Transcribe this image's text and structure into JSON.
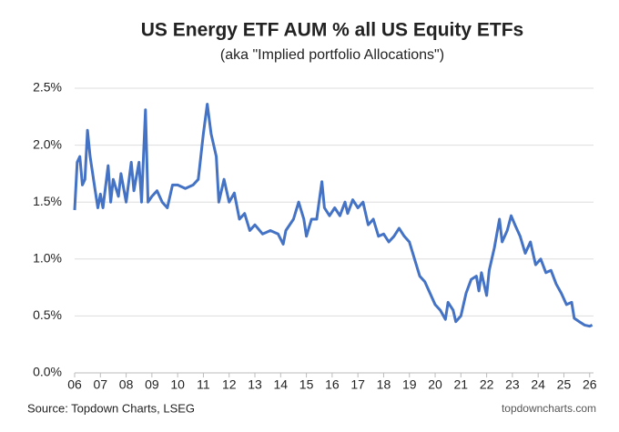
{
  "chart_data": {
    "type": "line",
    "title": "US Energy ETF AUM % all US Equity ETFs",
    "subtitle": "(aka \"Implied portfolio Allocations\")",
    "source": "Source: Topdown Charts, LSEG",
    "credit": "topdowncharts.com",
    "x": [
      6.0,
      6.1,
      6.2,
      6.3,
      6.4,
      6.5,
      6.6,
      6.8,
      6.9,
      7.0,
      7.1,
      7.3,
      7.4,
      7.5,
      7.7,
      7.8,
      8.0,
      8.2,
      8.3,
      8.5,
      8.6,
      8.75,
      8.85,
      9.0,
      9.2,
      9.4,
      9.6,
      9.8,
      10.0,
      10.3,
      10.6,
      10.8,
      11.0,
      11.15,
      11.3,
      11.5,
      11.6,
      11.8,
      12.0,
      12.2,
      12.4,
      12.6,
      12.8,
      13.0,
      13.3,
      13.6,
      13.9,
      14.1,
      14.2,
      14.5,
      14.7,
      14.9,
      15.0,
      15.2,
      15.4,
      15.6,
      15.7,
      15.9,
      16.1,
      16.3,
      16.5,
      16.6,
      16.8,
      17.0,
      17.2,
      17.4,
      17.6,
      17.8,
      18.0,
      18.2,
      18.4,
      18.6,
      18.8,
      19.0,
      19.2,
      19.4,
      19.6,
      19.8,
      20.0,
      20.2,
      20.4,
      20.5,
      20.7,
      20.8,
      21.0,
      21.2,
      21.4,
      21.6,
      21.7,
      21.8,
      22.0,
      22.1,
      22.3,
      22.5,
      22.6,
      22.8,
      22.95,
      23.1,
      23.3,
      23.5,
      23.7,
      23.9,
      24.1,
      24.3,
      24.5,
      24.7,
      24.9,
      25.1,
      25.3,
      25.4,
      25.6,
      25.8,
      26.0,
      26.1
    ],
    "series": [
      {
        "name": "US Energy ETF AUM %",
        "color": "#4472c4",
        "values": [
          1.43,
          1.85,
          1.9,
          1.65,
          1.7,
          2.13,
          1.9,
          1.6,
          1.45,
          1.57,
          1.45,
          1.82,
          1.5,
          1.7,
          1.55,
          1.75,
          1.5,
          1.85,
          1.6,
          1.85,
          1.5,
          2.31,
          1.5,
          1.55,
          1.6,
          1.5,
          1.45,
          1.65,
          1.65,
          1.62,
          1.65,
          1.7,
          2.1,
          2.36,
          2.1,
          1.9,
          1.5,
          1.7,
          1.5,
          1.58,
          1.35,
          1.4,
          1.25,
          1.3,
          1.22,
          1.25,
          1.22,
          1.13,
          1.25,
          1.35,
          1.5,
          1.35,
          1.2,
          1.35,
          1.35,
          1.68,
          1.45,
          1.38,
          1.45,
          1.38,
          1.5,
          1.4,
          1.52,
          1.45,
          1.5,
          1.3,
          1.35,
          1.2,
          1.22,
          1.15,
          1.2,
          1.27,
          1.2,
          1.15,
          1.0,
          0.85,
          0.8,
          0.7,
          0.6,
          0.55,
          0.47,
          0.62,
          0.55,
          0.45,
          0.5,
          0.7,
          0.82,
          0.85,
          0.72,
          0.88,
          0.68,
          0.9,
          1.1,
          1.35,
          1.15,
          1.25,
          1.38,
          1.3,
          1.2,
          1.05,
          1.15,
          0.95,
          1.0,
          0.88,
          0.9,
          0.78,
          0.7,
          0.6,
          0.62,
          0.48,
          0.45,
          0.42,
          0.41,
          0.42
        ]
      }
    ],
    "xlim": [
      6,
      26.15
    ],
    "xticks": [
      {
        "value": 6,
        "label": "06"
      },
      {
        "value": 7,
        "label": "07"
      },
      {
        "value": 8,
        "label": "08"
      },
      {
        "value": 9,
        "label": "09"
      },
      10,
      11,
      12,
      13,
      14,
      15,
      16,
      17,
      18,
      19,
      20,
      21,
      22,
      23,
      24,
      25,
      26
    ],
    "ylim": [
      0,
      2.5
    ],
    "yticks": [
      {
        "value": 0,
        "label": "0.0%"
      },
      {
        "value": 0.5,
        "label": "0.5%"
      },
      {
        "value": 1,
        "label": "1.0%"
      },
      {
        "value": 1.5,
        "label": "1.5%"
      },
      {
        "value": 2,
        "label": "2.0%"
      },
      {
        "value": 2.5,
        "label": "2.5%"
      }
    ],
    "grid": true
  }
}
